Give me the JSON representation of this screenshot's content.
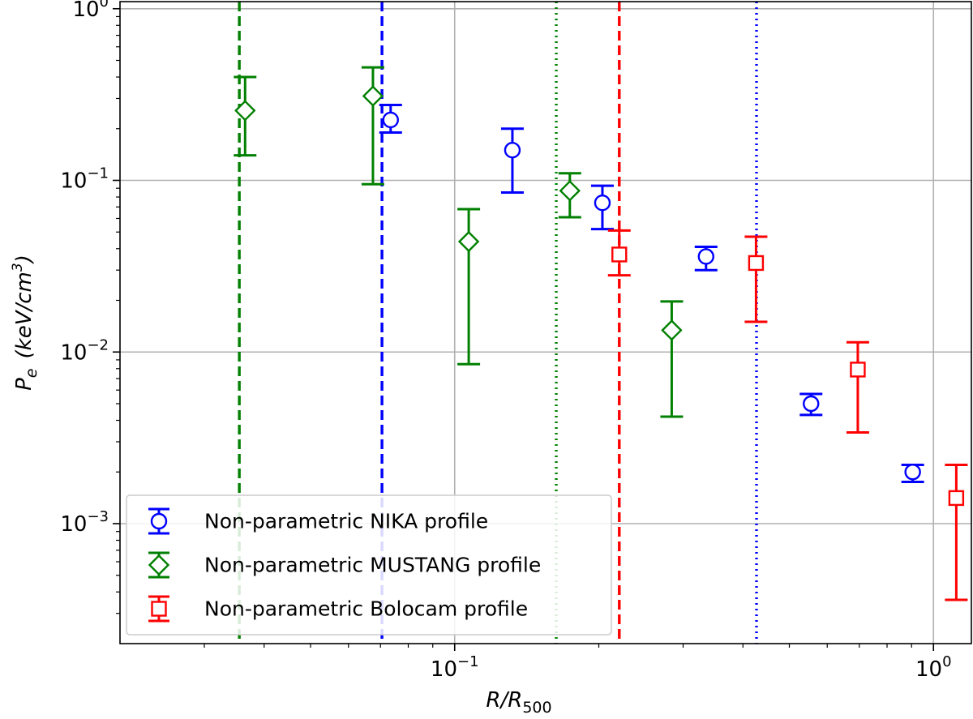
{
  "chart_data": {
    "type": "scatter",
    "x_scale": "log",
    "y_scale": "log",
    "xlim": [
      0.02,
      1.2
    ],
    "ylim": [
      0.0002,
      1.1
    ],
    "grid": true,
    "xlabel": {
      "main": "R/R",
      "sub": "500"
    },
    "ylabel": {
      "main": "P",
      "sub": "e",
      "unit": "(keV/cm",
      "unit_sup": "3",
      "unit_close": ")"
    },
    "x_major_ticks": [
      {
        "value": 0.1,
        "base": "10",
        "exp": "−1"
      },
      {
        "value": 1.0,
        "base": "10",
        "exp": "0"
      }
    ],
    "y_major_ticks": [
      {
        "value": 0.001,
        "base": "10",
        "exp": "−3"
      },
      {
        "value": 0.01,
        "base": "10",
        "exp": "−2"
      },
      {
        "value": 0.1,
        "base": "10",
        "exp": "−1"
      },
      {
        "value": 1.0,
        "base": "10",
        "exp": "0"
      }
    ],
    "vertical_lines": [
      {
        "x": 0.0355,
        "color": "#008000",
        "style": "dashed"
      },
      {
        "x": 0.0705,
        "color": "#0000ff",
        "style": "dashed"
      },
      {
        "x": 0.163,
        "color": "#008000",
        "style": "dotted"
      },
      {
        "x": 0.2207,
        "color": "#ff0000",
        "style": "dashed"
      },
      {
        "x": 0.427,
        "color": "#0000ff",
        "style": "dotted"
      }
    ],
    "series": [
      {
        "name": "Non-parametric NIKA profile",
        "color": "#0000ff",
        "marker": "circle",
        "points": [
          {
            "x": 0.0735,
            "y": 0.225,
            "ylow": 0.19,
            "yhigh": 0.275
          },
          {
            "x": 0.132,
            "y": 0.15,
            "ylow": 0.085,
            "yhigh": 0.2
          },
          {
            "x": 0.2035,
            "y": 0.074,
            "ylow": 0.052,
            "yhigh": 0.093
          },
          {
            "x": 0.335,
            "y": 0.036,
            "ylow": 0.03,
            "yhigh": 0.041
          },
          {
            "x": 0.555,
            "y": 0.005,
            "ylow": 0.0043,
            "yhigh": 0.0057
          },
          {
            "x": 0.905,
            "y": 0.002,
            "ylow": 0.00175,
            "yhigh": 0.0022
          }
        ]
      },
      {
        "name": "Non-parametric MUSTANG profile",
        "color": "#008000",
        "marker": "diamond",
        "points": [
          {
            "x": 0.0365,
            "y": 0.255,
            "ylow": 0.14,
            "yhigh": 0.4
          },
          {
            "x": 0.0675,
            "y": 0.31,
            "ylow": 0.095,
            "yhigh": 0.455
          },
          {
            "x": 0.107,
            "y": 0.044,
            "ylow": 0.0085,
            "yhigh": 0.068
          },
          {
            "x": 0.174,
            "y": 0.087,
            "ylow": 0.061,
            "yhigh": 0.11
          },
          {
            "x": 0.284,
            "y": 0.0134,
            "ylow": 0.0042,
            "yhigh": 0.0197
          }
        ]
      },
      {
        "name": "Non-parametric Bolocam profile",
        "color": "#ff0000",
        "marker": "square",
        "points": [
          {
            "x": 0.2207,
            "y": 0.037,
            "ylow": 0.028,
            "yhigh": 0.051
          },
          {
            "x": 0.426,
            "y": 0.033,
            "ylow": 0.015,
            "yhigh": 0.047
          },
          {
            "x": 0.695,
            "y": 0.0079,
            "ylow": 0.0034,
            "yhigh": 0.0114
          },
          {
            "x": 1.116,
            "y": 0.00141,
            "ylow": 0.00036,
            "yhigh": 0.0022
          }
        ]
      }
    ]
  }
}
